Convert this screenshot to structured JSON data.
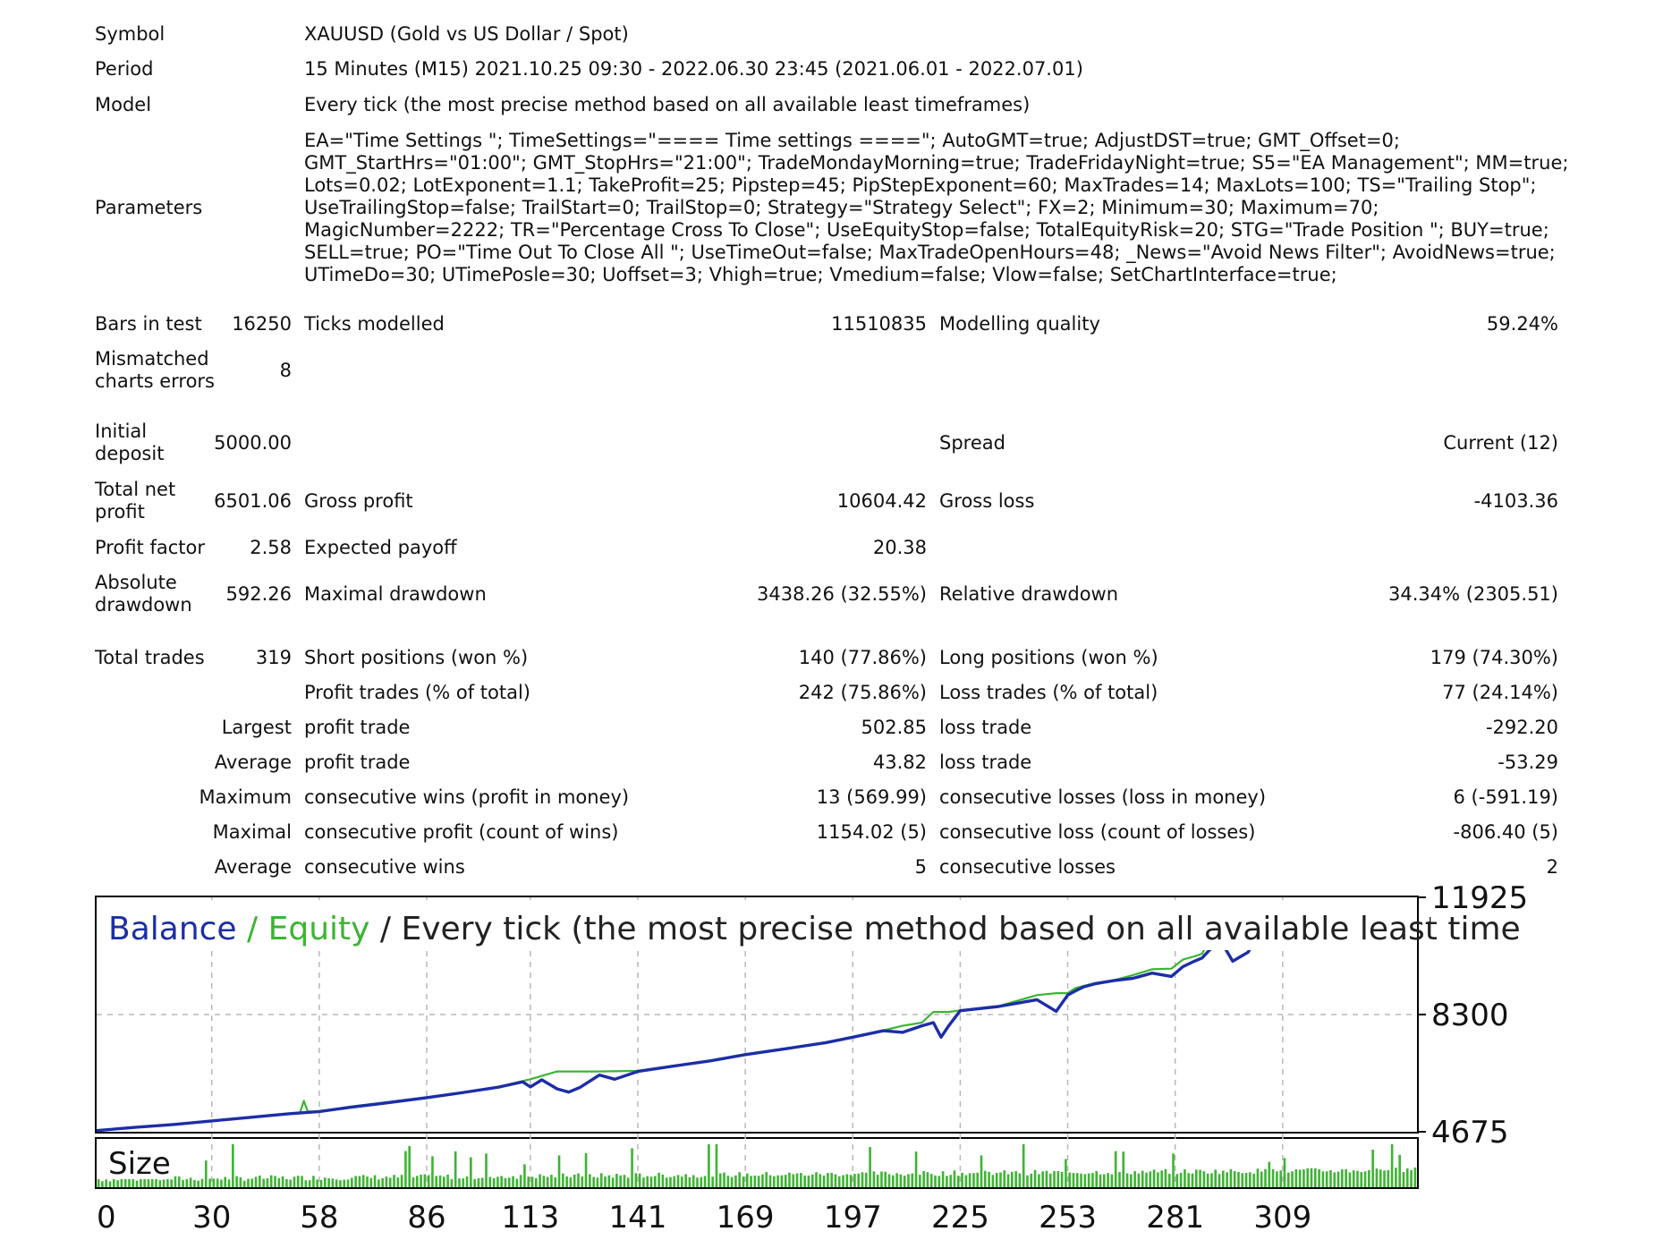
{
  "header": {
    "symbol_label": "Symbol",
    "symbol_value": "XAUUSD (Gold vs US Dollar / Spot)",
    "period_label": "Period",
    "period_value": "15 Minutes (M15) 2021.10.25 09:30 - 2022.06.30 23:45 (2021.06.01 - 2022.07.01)",
    "model_label": "Model",
    "model_value": "Every tick (the most precise method based on all available least timeframes)",
    "parameters_label": "Parameters",
    "parameters_value": "EA=\"Time Settings \"; TimeSettings=\"==== Time settings ====\"; AutoGMT=true; AdjustDST=true; GMT_Offset=0; GMT_StartHrs=\"01:00\"; GMT_StopHrs=\"21:00\"; TradeMondayMorning=true; TradeFridayNight=true; S5=\"EA Management\"; MM=true; Lots=0.02; LotExponent=1.1; TakeProfit=25; Pipstep=45; PipStepExponent=60; MaxTrades=14; MaxLots=100; TS=\"Trailing Stop\"; UseTrailingStop=false; TrailStart=0; TrailStop=0; Strategy=\"Strategy Select\"; FX=2; Minimum=30; Maximum=70; MagicNumber=2222; TR=\"Percentage Cross To Close\"; UseEquityStop=false; TotalEquityRisk=20; STG=\"Trade Position \"; BUY=true; SELL=true; PO=\"Time Out To Close All \"; UseTimeOut=false; MaxTradeOpenHours=48; _News=\"Avoid News Filter\"; AvoidNews=true; UTimeDo=30; UTimePosle=30; Uoffset=3; Vhigh=true; Vmedium=false; Vlow=false; SetChartInterface=true;"
  },
  "stats": {
    "bars_label": "Bars in test",
    "bars_value": "16250",
    "ticks_label": "Ticks modelled",
    "ticks_value": "11510835",
    "quality_label": "Modelling quality",
    "quality_value": "59.24%",
    "mismatched_label": "Mismatched charts errors",
    "mismatched_value": "8",
    "deposit_label": "Initial deposit",
    "deposit_value": "5000.00",
    "spread_label": "Spread",
    "spread_value": "Current (12)",
    "netprofit_label": "Total net profit",
    "netprofit_value": "6501.06",
    "grossprofit_label": "Gross profit",
    "grossprofit_value": "10604.42",
    "grossloss_label": "Gross loss",
    "grossloss_value": "-4103.36",
    "pf_label": "Profit factor",
    "pf_value": "2.58",
    "payoff_label": "Expected payoff",
    "payoff_value": "20.38",
    "absdd_label": "Absolute drawdown",
    "absdd_value": "592.26",
    "maxdd_label": "Maximal drawdown",
    "maxdd_value": "3438.26 (32.55%)",
    "reldd_label": "Relative drawdown",
    "reldd_value": "34.34% (2305.51)",
    "trades_label": "Total trades",
    "trades_value": "319",
    "short_label": "Short positions (won %)",
    "short_value": "140 (77.86%)",
    "long_label": "Long positions (won %)",
    "long_value": "179 (74.30%)",
    "profit_trades_label": "Profit trades (% of total)",
    "profit_trades_value": "242 (75.86%)",
    "loss_trades_label": "Loss trades (% of total)",
    "loss_trades_value": "77 (24.14%)",
    "largest_label": "Largest",
    "largest_profit_label": "profit trade",
    "largest_profit_value": "502.85",
    "largest_loss_label": "loss trade",
    "largest_loss_value": "-292.20",
    "average_label": "Average",
    "average_profit_label": "profit trade",
    "average_profit_value": "43.82",
    "average_loss_label": "loss trade",
    "average_loss_value": "-53.29",
    "maximum_label": "Maximum",
    "max_wins_label": "consecutive wins (profit in money)",
    "max_wins_value": "13 (569.99)",
    "max_losses_label": "consecutive losses (loss in money)",
    "max_losses_value": "6 (-591.19)",
    "maximal_label": "Maximal",
    "maximal_profit_label": "consecutive profit (count of wins)",
    "maximal_profit_value": "1154.02 (5)",
    "maximal_loss_label": "consecutive loss (count of losses)",
    "maximal_loss_value": "-806.40 (5)",
    "avg2_label": "Average",
    "avg_wins_label": "consecutive wins",
    "avg_wins_value": "5",
    "avg_losses_label": "consecutive losses",
    "avg_losses_value": "2"
  },
  "chart_data": {
    "type": "line",
    "title_balance": "Balance",
    "title_sep1": " / ",
    "title_equity": "Equity",
    "title_rest": " / Every tick (the most precise method based on all available least time",
    "size_label": "Size",
    "y_ticks": [
      11925,
      8300,
      4675
    ],
    "ylim": [
      4675,
      11925
    ],
    "x_ticks": [
      0,
      30,
      58,
      86,
      113,
      141,
      169,
      197,
      225,
      253,
      281,
      309
    ],
    "xlim": [
      0,
      344
    ],
    "grid": true,
    "colors": {
      "balance": "#1c2ea6",
      "equity": "#3cb432",
      "size": "#3cb432",
      "grid": "#b8b8b8"
    },
    "series": [
      {
        "name": "Balance",
        "x": [
          0,
          10,
          20,
          30,
          40,
          50,
          58,
          66,
          75,
          86,
          95,
          105,
          111,
          113,
          116,
          120,
          123,
          126,
          131,
          135,
          141,
          150,
          160,
          169,
          180,
          190,
          197,
          205,
          210,
          215,
          218,
          220,
          222,
          225,
          235,
          245,
          250,
          253,
          255,
          257,
          260,
          265,
          270,
          275,
          280,
          283,
          286,
          288,
          290,
          293,
          296,
          300,
          302,
          304
        ],
        "y": [
          4710,
          4810,
          4900,
          5010,
          5120,
          5230,
          5300,
          5430,
          5560,
          5730,
          5880,
          6060,
          6220,
          6060,
          6280,
          6000,
          5900,
          6050,
          6430,
          6300,
          6540,
          6700,
          6870,
          7060,
          7250,
          7430,
          7600,
          7800,
          7750,
          7950,
          8050,
          7600,
          7950,
          8420,
          8550,
          8760,
          8400,
          8900,
          9030,
          9150,
          9250,
          9350,
          9420,
          9580,
          9480,
          9780,
          9950,
          10050,
          10300,
          10550,
          9950,
          10230,
          10650,
          11050
        ]
      },
      {
        "name": "Equity",
        "x": [
          0,
          10,
          20,
          30,
          40,
          50,
          53,
          54,
          55,
          58,
          66,
          75,
          86,
          95,
          105,
          113,
          120,
          126,
          131,
          141,
          150,
          160,
          169,
          180,
          190,
          197,
          205,
          210,
          215,
          218,
          220,
          222,
          225,
          235,
          245,
          250,
          253,
          255,
          257,
          260,
          265,
          270,
          275,
          280,
          283,
          286,
          288,
          290,
          293,
          296,
          300,
          302,
          304
        ],
        "y": [
          4710,
          4810,
          4900,
          5010,
          5120,
          5230,
          5270,
          5630,
          5300,
          5300,
          5450,
          5580,
          5740,
          5890,
          6070,
          6300,
          6540,
          6540,
          6540,
          6560,
          6710,
          6880,
          7060,
          7250,
          7440,
          7600,
          7810,
          7950,
          8050,
          8380,
          8380,
          8380,
          8430,
          8560,
          8900,
          8960,
          8960,
          9120,
          9180,
          9270,
          9360,
          9520,
          9700,
          9720,
          10000,
          10100,
          10180,
          10600,
          10650,
          10640,
          10640,
          10650,
          11050
        ]
      }
    ]
  }
}
